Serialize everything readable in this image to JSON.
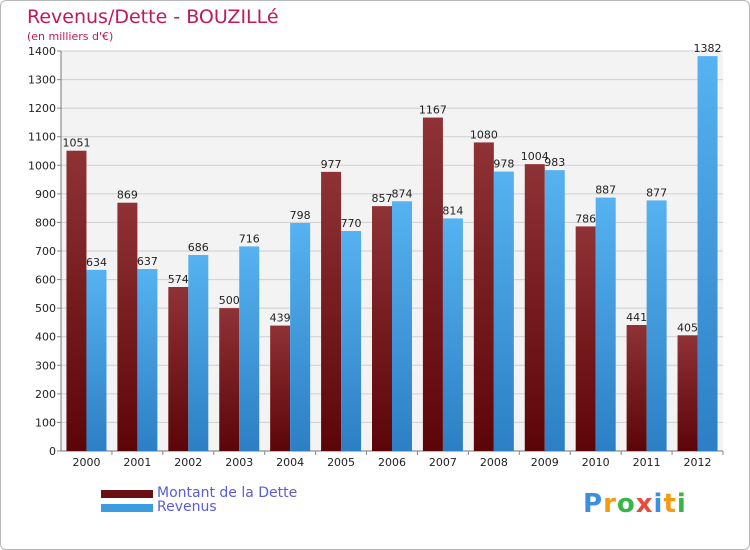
{
  "header": {
    "title": "Revenus/Dette - BOUZILLé",
    "subtitle": "(en milliers d'€)"
  },
  "logo": {
    "letters": [
      "P",
      "r",
      "o",
      "x",
      "i",
      "t",
      "i"
    ],
    "colors": [
      "#3c8fdd",
      "#f39c12",
      "#39b54a",
      "#e74c3c",
      "#3c8fdd",
      "#f39c12",
      "#39b54a"
    ]
  },
  "chart_data": {
    "type": "bar",
    "categories": [
      "2000",
      "2001",
      "2002",
      "2003",
      "2004",
      "2005",
      "2006",
      "2007",
      "2008",
      "2009",
      "2010",
      "2011",
      "2012"
    ],
    "series": [
      {
        "name": "Montant de la Dette",
        "color": "#6b0f14",
        "values": [
          1051,
          869,
          574,
          500,
          439,
          977,
          857,
          1167,
          1080,
          1004,
          786,
          441,
          405
        ]
      },
      {
        "name": "Revenus",
        "color": "#3d9be0",
        "values": [
          634,
          637,
          686,
          716,
          798,
          770,
          874,
          814,
          978,
          983,
          887,
          877,
          1382
        ]
      }
    ],
    "ylim": [
      0,
      1400
    ],
    "yticks": [
      0,
      100,
      200,
      300,
      400,
      500,
      600,
      700,
      800,
      900,
      1000,
      1100,
      1200,
      1300,
      1400
    ],
    "grid": true,
    "legend_position": "bottom-left"
  }
}
